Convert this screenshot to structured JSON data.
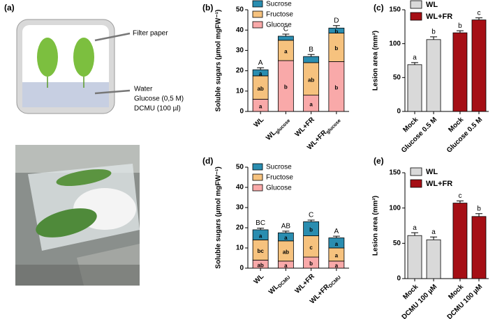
{
  "panel_a": {
    "label": "(a)",
    "filter_label": "Filter paper",
    "water_lines": [
      "Water",
      "Glucose (0,5 M)",
      "DCMU (100 µl)"
    ]
  },
  "chart_data": [
    {
      "panel": "(b)",
      "type": "stacked_bar",
      "ylabel": "Soluble sugars (µmol mgFW⁻¹)",
      "categories": [
        "WL",
        "WL",
        "WL+FR",
        "WL+FR"
      ],
      "category_subscripts": [
        null,
        "glucose",
        null,
        "glucose"
      ],
      "ylim": [
        0,
        50
      ],
      "yticks": [
        0,
        10,
        20,
        30,
        40,
        50
      ],
      "series": [
        {
          "name": "Glucose",
          "color": "#f9a9a9",
          "values": [
            6,
            25,
            8,
            24.5
          ],
          "errors": [
            0.8,
            1,
            1,
            1
          ],
          "letters": [
            "a",
            "b",
            "a",
            "b"
          ]
        },
        {
          "name": "Fructose",
          "color": "#f6c27e",
          "values": [
            11.5,
            10,
            16,
            14
          ],
          "errors": [
            1,
            1,
            1,
            1
          ],
          "letters": [
            "ab",
            "a",
            "ab",
            "b"
          ]
        },
        {
          "name": "Sucrose",
          "color": "#2a8db0",
          "values": [
            3,
            2,
            3,
            2.5
          ],
          "errors": [
            1,
            1,
            1,
            1.2
          ],
          "letters": [
            "a",
            null,
            null,
            "b"
          ]
        }
      ],
      "annotations": [
        "A",
        "C",
        "B",
        "D"
      ]
    },
    {
      "panel": "(c)",
      "type": "bar",
      "ylabel": "Lesion area (mm²)",
      "categories": [
        "Mock",
        "Glucose 0.5 M",
        "Mock",
        "Glucose 0.5 M"
      ],
      "ylim": [
        0,
        150
      ],
      "yticks": [
        0,
        50,
        100,
        150
      ],
      "series": [
        {
          "name": "WL",
          "color": "#d9d9d9",
          "values": [
            69,
            106,
            null,
            null
          ],
          "errors": [
            3,
            4,
            null,
            null
          ],
          "letters": [
            "a",
            "b",
            null,
            null
          ]
        },
        {
          "name": "WL+FR",
          "color": "#a50f15",
          "values": [
            null,
            null,
            116,
            135
          ],
          "errors": [
            null,
            null,
            3,
            3
          ],
          "letters": [
            null,
            null,
            "b",
            "c"
          ]
        }
      ]
    },
    {
      "panel": "(d)",
      "type": "stacked_bar",
      "ylabel": "Soluble sugars (µmol mgFW⁻¹)",
      "categories": [
        "WL",
        "WL",
        "WL+FR",
        "WL+FR"
      ],
      "category_subscripts": [
        null,
        "DCMU",
        null,
        "DCMU"
      ],
      "ylim": [
        0,
        50
      ],
      "yticks": [
        0,
        10,
        20,
        30,
        40,
        50
      ],
      "series": [
        {
          "name": "Glucose",
          "color": "#f9a9a9",
          "values": [
            4,
            3.5,
            5.5,
            3.5
          ],
          "errors": [
            0.6,
            0.6,
            1,
            0.6
          ],
          "letters": [
            "ab",
            "a",
            "b",
            "a"
          ]
        },
        {
          "name": "Fructose",
          "color": "#f6c27e",
          "values": [
            10,
            10,
            10.5,
            6.5
          ],
          "errors": [
            0.8,
            0.8,
            0.8,
            0.8
          ],
          "letters": [
            "bc",
            "ab",
            "c",
            "a"
          ]
        },
        {
          "name": "Sucrose",
          "color": "#2a8db0",
          "values": [
            5,
            4,
            7,
            5
          ],
          "errors": [
            0.8,
            0.8,
            0.8,
            0.8
          ],
          "letters": [
            "a",
            "a",
            "b",
            "a"
          ]
        }
      ],
      "annotations": [
        "BC",
        "AB",
        "C",
        "A"
      ]
    },
    {
      "panel": "(e)",
      "type": "bar",
      "ylabel": "Lesion area (mm²)",
      "categories": [
        "Mock",
        "DCMU 100 µM",
        "Mock",
        "DCMU 100 µM"
      ],
      "ylim": [
        0,
        150
      ],
      "yticks": [
        0,
        50,
        100,
        150
      ],
      "series": [
        {
          "name": "WL",
          "color": "#d9d9d9",
          "values": [
            61,
            55,
            null,
            null
          ],
          "errors": [
            4,
            4,
            null,
            null
          ],
          "letters": [
            "a",
            "a",
            null,
            null
          ]
        },
        {
          "name": "WL+FR",
          "color": "#a50f15",
          "values": [
            null,
            null,
            107,
            88
          ],
          "errors": [
            null,
            null,
            3,
            4
          ],
          "letters": [
            null,
            null,
            "c",
            "b"
          ]
        }
      ]
    }
  ]
}
